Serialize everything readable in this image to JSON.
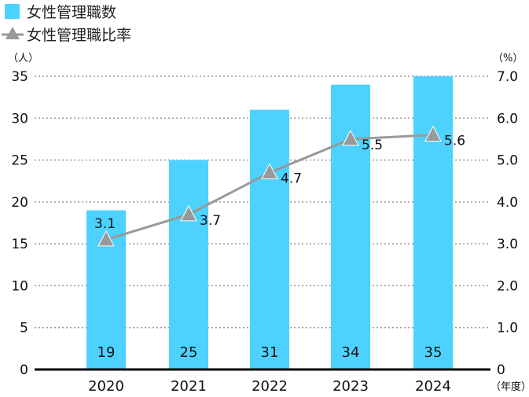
{
  "chart_data": {
    "type": "bar",
    "categories": [
      "2020",
      "2021",
      "2022",
      "2023",
      "2024"
    ],
    "series": [
      {
        "name": "女性管理職数",
        "type": "bar",
        "axis": "left",
        "values": [
          19,
          25,
          31,
          34,
          35
        ],
        "color": "#4dd2ff"
      },
      {
        "name": "女性管理職比率",
        "type": "line",
        "axis": "right",
        "marker": "triangle",
        "values": [
          3.1,
          3.7,
          4.7,
          5.5,
          5.6
        ],
        "labels": [
          "3.1",
          "3.7",
          "4.7",
          "5.5",
          "5.6"
        ],
        "color": "#999999"
      }
    ],
    "y_left": {
      "unit": "（人）",
      "ylim": [
        0,
        35
      ],
      "ticks": [
        "0",
        "5",
        "10",
        "15",
        "20",
        "25",
        "30",
        "35"
      ]
    },
    "y_right": {
      "unit": "（%）",
      "ylim": [
        0,
        7
      ],
      "ticks": [
        "0",
        "1.0",
        "2.0",
        "3.0",
        "4.0",
        "5.0",
        "6.0",
        "7.0"
      ]
    },
    "x_unit": "（年度）",
    "grid": "horizontal-dotted",
    "legend_position": "top-left"
  }
}
